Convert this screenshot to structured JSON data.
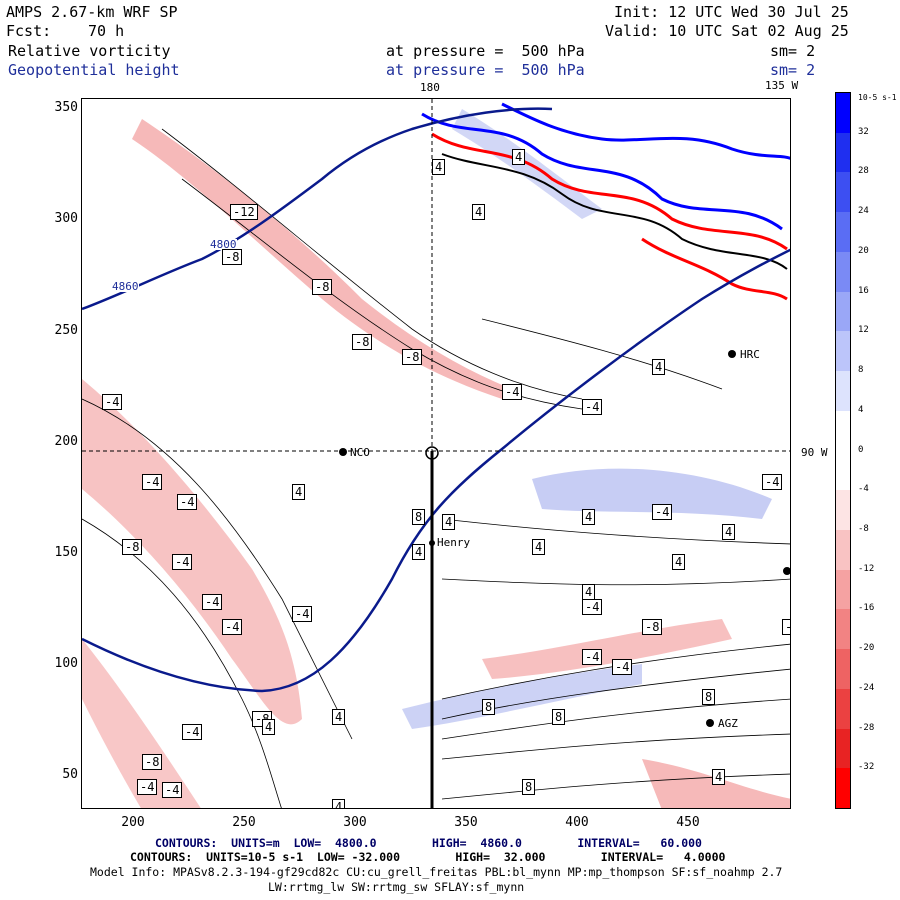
{
  "header": {
    "model": "AMPS 2.67-km WRF SP",
    "init": "Init: 12 UTC Wed 30 Jul 25",
    "fcst_label": "Fcst:",
    "fcst_value": "70 h",
    "valid": "Valid: 10 UTC Sat 02 Aug 25",
    "field1_name": "Relative vorticity",
    "field1_level": "at pressure =  500 hPa",
    "field1_smooth": "sm= 2",
    "field2_name": "Geopotential height",
    "field2_level": "at pressure =  500 hPa",
    "field2_smooth": "sm= 2"
  },
  "map": {
    "top_labels": [
      "180",
      "135 W"
    ],
    "right_label": "90 W",
    "x_ticks": [
      "200",
      "250",
      "300",
      "350",
      "400",
      "450"
    ],
    "y_ticks": [
      "350",
      "300",
      "250",
      "200",
      "150",
      "100",
      "50"
    ],
    "stations": [
      "HRC",
      "NCO",
      "Henry",
      "AGZ"
    ],
    "height_contour_labels": [
      "4800",
      "4860"
    ],
    "vorticity_labels": [
      "-12",
      "-8",
      "-4",
      "4",
      "8"
    ]
  },
  "colorbar": {
    "unit": "10-5 s-1",
    "labels": [
      "32",
      "28",
      "24",
      "20",
      "16",
      "12",
      "8",
      "4",
      "0",
      "-4",
      "-8",
      "-12",
      "-16",
      "-20",
      "-24",
      "-28",
      "-32"
    ],
    "colors": [
      "#0000ff",
      "#1f2ff0",
      "#3d4ff2",
      "#5a6df4",
      "#7a8af5",
      "#9aa7f7",
      "#bcc5fa",
      "#dde3fd",
      "#ffffff",
      "#ffffff",
      "#fde4e4",
      "#f9c3c3",
      "#f5a2a2",
      "#f28383",
      "#ee6363",
      "#eb4141",
      "#e82323",
      "#ff0000"
    ]
  },
  "footer": {
    "contours1": "CONTOURS:  UNITS=m  LOW=  4800.0        HIGH=  4860.0        INTERVAL=   60.000",
    "contours2": "CONTOURS:  UNITS=10-5 s-1  LOW= -32.000        HIGH=  32.000        INTERVAL=   4.0000",
    "model_info": "Model Info: MPASv8.2.3-194-gf29cd82c CU:cu_grell_freitas PBL:bl_mynn MP:mp_thompson SF:sf_noahmp 2.7",
    "model_info2": "LW:rrtmg_lw SW:rrtmg_sw SFLAY:sf_mynn"
  }
}
